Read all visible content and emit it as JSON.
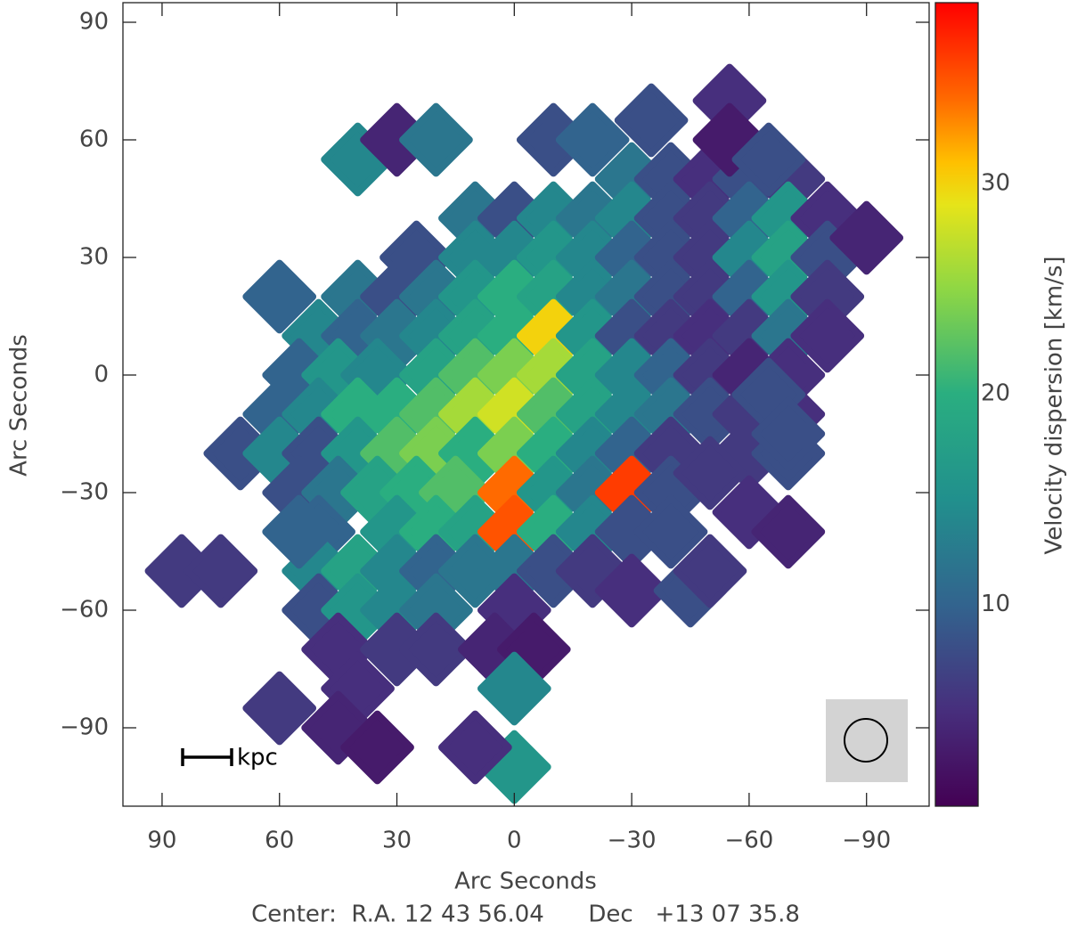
{
  "chart_data": {
    "type": "heatmap",
    "xlabel": "Arc Seconds",
    "ylabel": "Arc Seconds",
    "footer": "Center:  R.A. 12 43 56.04      Dec   +13 07 35.8",
    "scale_bar_label": "kpc",
    "xlim": [
      100,
      -106
    ],
    "ylim": [
      -110,
      95
    ],
    "xticks": [
      90,
      60,
      30,
      0,
      {
        "value": -30,
        "label": "−30"
      },
      {
        "value": -60,
        "label": "−60"
      },
      {
        "value": -90,
        "label": "−90"
      }
    ],
    "yticks": [
      90,
      60,
      30,
      0,
      {
        "value": -30,
        "label": "−30"
      },
      {
        "value": -60,
        "label": "−60"
      },
      {
        "value": -90,
        "label": "−90"
      }
    ],
    "x": [
      -30,
      -40,
      -50,
      -60,
      -70,
      10,
      0,
      -10,
      -20,
      -30,
      -40,
      -50,
      -60,
      -70,
      -80,
      25,
      10,
      0,
      -10,
      -20,
      -30,
      -40,
      -50,
      -60,
      -70,
      -80,
      -90,
      40,
      30,
      20,
      10,
      0,
      -10,
      -20,
      -30,
      -40,
      -50,
      -60,
      -70,
      -80,
      60,
      50,
      40,
      30,
      20,
      10,
      0,
      -10,
      -20,
      -30,
      -40,
      -50,
      -60,
      -70,
      -80,
      55,
      45,
      35,
      20,
      10,
      0,
      -10,
      -20,
      -30,
      -40,
      -50,
      -60,
      -70,
      60,
      50,
      40,
      30,
      20,
      10,
      0,
      -10,
      -20,
      -30,
      -40,
      -50,
      -60,
      -70,
      70,
      60,
      50,
      40,
      30,
      20,
      10,
      0,
      -10,
      -20,
      -30,
      -40,
      -60,
      -70,
      55,
      45,
      35,
      25,
      15,
      0,
      -10,
      -20,
      -30,
      -40,
      50,
      30,
      20,
      10,
      0,
      -10,
      -20,
      -30,
      50,
      40,
      30,
      20,
      10,
      0,
      -10,
      -20,
      50,
      40,
      30,
      20,
      0,
      45,
      30,
      20,
      40,
      30,
      20,
      -10,
      -20,
      -35,
      -55,
      -55,
      -65,
      85,
      75,
      55,
      0,
      5,
      -5,
      0,
      0,
      10,
      40,
      60,
      45,
      35,
      -30,
      -45,
      -50,
      -40,
      -50,
      -60,
      -70,
      -65,
      -70
    ],
    "y": [
      50,
      50,
      50,
      50,
      50,
      40,
      40,
      40,
      40,
      40,
      40,
      40,
      40,
      40,
      40,
      30,
      30,
      30,
      30,
      30,
      30,
      30,
      30,
      30,
      30,
      30,
      35,
      20,
      20,
      20,
      20,
      20,
      20,
      20,
      20,
      20,
      20,
      20,
      20,
      20,
      20,
      10,
      10,
      10,
      10,
      10,
      10,
      10,
      10,
      10,
      10,
      10,
      10,
      10,
      10,
      0,
      0,
      0,
      0,
      0,
      0,
      0,
      0,
      0,
      0,
      0,
      0,
      0,
      -10,
      -10,
      -10,
      -10,
      -10,
      -10,
      -10,
      -10,
      -10,
      -10,
      -10,
      -10,
      -10,
      -10,
      -20,
      -20,
      -20,
      -20,
      -20,
      -20,
      -20,
      -20,
      -20,
      -20,
      -20,
      -20,
      -20,
      -20,
      -30,
      -30,
      -30,
      -30,
      -30,
      -30,
      -30,
      -30,
      -30,
      -30,
      -40,
      -40,
      -40,
      -40,
      -40,
      -40,
      -40,
      -40,
      -50,
      -50,
      -50,
      -50,
      -50,
      -50,
      -50,
      -50,
      -60,
      -60,
      -60,
      -60,
      -60,
      -70,
      -70,
      -70,
      55,
      60,
      60,
      60,
      60,
      65,
      70,
      60,
      55,
      -50,
      -50,
      -40,
      -75,
      -70,
      -70,
      -80,
      -100,
      -95,
      -80,
      -85,
      -90,
      -95,
      -55,
      -55,
      -50,
      -40,
      -25,
      -35,
      -40,
      -5,
      -15
    ],
    "values": [
      12,
      8,
      5,
      8,
      6,
      12,
      8,
      14,
      12,
      14,
      8,
      6,
      10,
      16,
      5,
      8,
      14,
      14,
      16,
      14,
      10,
      8,
      6,
      14,
      18,
      8,
      4,
      12,
      8,
      12,
      16,
      20,
      18,
      14,
      12,
      8,
      6,
      10,
      16,
      6,
      10,
      14,
      10,
      12,
      14,
      18,
      20,
      30,
      16,
      8,
      6,
      5,
      6,
      12,
      5,
      10,
      16,
      14,
      18,
      22,
      24,
      26,
      18,
      14,
      10,
      6,
      4,
      5,
      10,
      14,
      20,
      20,
      22,
      26,
      28,
      22,
      18,
      14,
      12,
      8,
      6,
      5,
      8,
      14,
      8,
      16,
      22,
      24,
      20,
      24,
      20,
      14,
      10,
      6,
      6,
      8,
      8,
      12,
      18,
      20,
      22,
      34,
      16,
      12,
      36,
      8,
      10,
      16,
      20,
      18,
      35,
      20,
      14,
      8,
      14,
      18,
      14,
      10,
      12,
      12,
      8,
      6,
      8,
      16,
      14,
      12,
      5,
      5,
      6,
      6,
      14,
      4,
      12,
      8,
      10,
      8,
      5,
      3,
      8,
      6,
      6,
      10,
      4,
      4,
      3,
      14,
      16,
      5,
      5,
      6,
      4,
      3,
      5,
      8,
      6,
      8,
      6,
      5,
      4,
      8,
      8
    ],
    "colorbar": {
      "label": "Velocity dispersion [km/s]",
      "lim": [
        0.4,
        38.6
      ],
      "ticks": [
        10,
        20,
        30
      ],
      "stops": [
        [
          0.4,
          "#440154"
        ],
        [
          5,
          "#472f7d"
        ],
        [
          10,
          "#32648e"
        ],
        [
          15,
          "#21908d"
        ],
        [
          20,
          "#2aae80"
        ],
        [
          25,
          "#8fd744"
        ],
        [
          29,
          "#e6e419"
        ],
        [
          31,
          "#ffc000"
        ],
        [
          34,
          "#ff6a00"
        ],
        [
          38.6,
          "#ff0000"
        ]
      ]
    }
  }
}
